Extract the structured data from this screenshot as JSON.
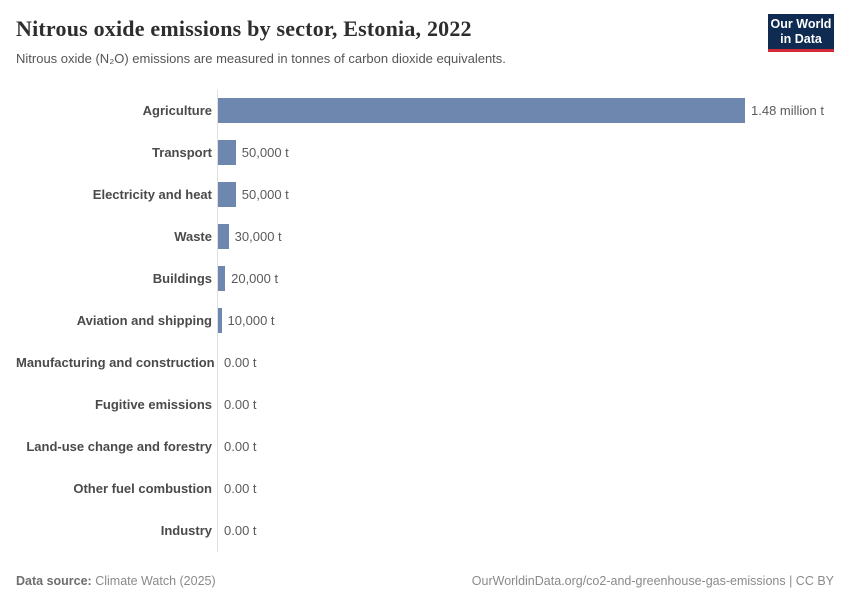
{
  "header": {
    "title": "Nitrous oxide emissions by sector, Estonia, 2022",
    "subtitle": "Nitrous oxide (N₂O) emissions are measured in tonnes of carbon dioxide equivalents.",
    "logo_line1": "Our World",
    "logo_line2": "in Data",
    "logo_bg_color": "#0f2b52",
    "logo_accent_color": "#d42b3a"
  },
  "chart_data": {
    "type": "bar",
    "orientation": "horizontal",
    "title": "Nitrous oxide emissions by sector, Estonia, 2022",
    "unit": "tonnes of carbon dioxide equivalents",
    "categories": [
      "Agriculture",
      "Transport",
      "Electricity and heat",
      "Waste",
      "Buildings",
      "Aviation and shipping",
      "Manufacturing and construction",
      "Fugitive emissions",
      "Land-use change and forestry",
      "Other fuel combustion",
      "Industry"
    ],
    "values": [
      1480000,
      50000,
      50000,
      30000,
      20000,
      10000,
      0,
      0,
      0,
      0,
      0
    ],
    "value_labels": [
      "1.48 million t",
      "50,000 t",
      "50,000 t",
      "30,000 t",
      "20,000 t",
      "10,000 t",
      "0.00 t",
      "0.00 t",
      "0.00 t",
      "0.00 t",
      "0.00 t"
    ],
    "xlim": [
      0,
      1480000
    ],
    "bar_color": "#6e87af",
    "grid": false,
    "legend": "none"
  },
  "footer": {
    "source_label": "Data source:",
    "source_value": "Climate Watch (2025)",
    "credit": "OurWorldinData.org/co2-and-greenhouse-gas-emissions | CC BY"
  }
}
